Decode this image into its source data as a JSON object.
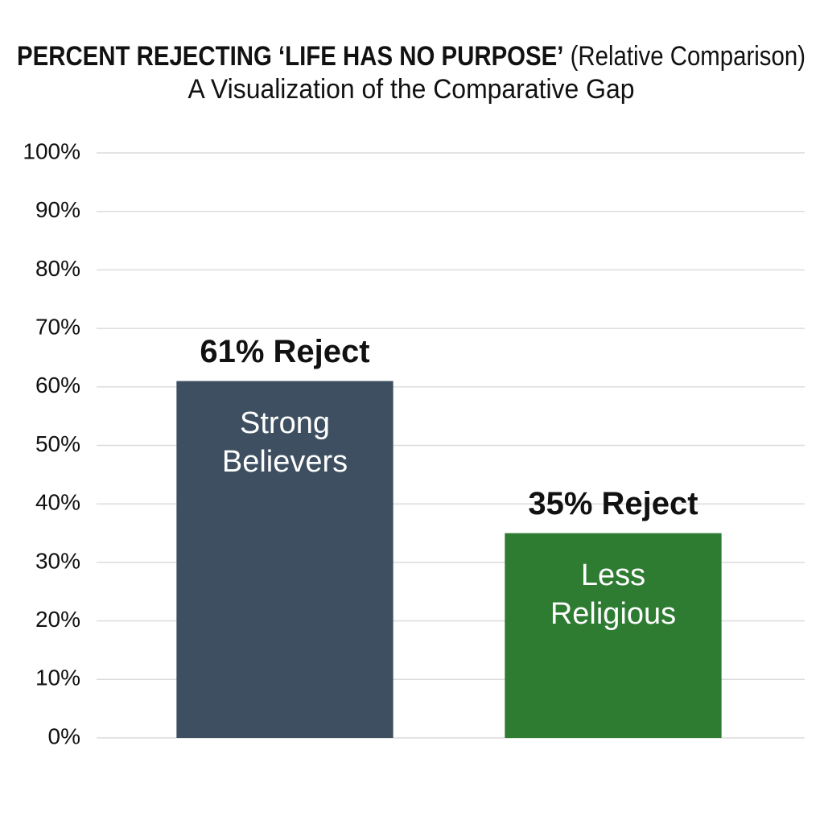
{
  "chart_data": {
    "type": "bar",
    "title": "PERCENT REJECTING ‘LIFE HAS NO PURPOSE’",
    "title_qualifier": "(Relative Comparison)",
    "subtitle": "A Visualization of the Comparative Gap",
    "categories": [
      "Strong Believers",
      "Less Religious"
    ],
    "values": [
      61,
      35
    ],
    "value_labels": [
      "61% Reject",
      "35% Reject"
    ],
    "colors": [
      "#3d4f60",
      "#2e7b32"
    ],
    "ylim": [
      0,
      100
    ],
    "yticks": [
      {
        "value": 0,
        "label": "0%"
      },
      {
        "value": 10,
        "label": "10%"
      },
      {
        "value": 20,
        "label": "20%"
      },
      {
        "value": 30,
        "label": "30%"
      },
      {
        "value": 40,
        "label": "40%"
      },
      {
        "value": 50,
        "label": "50%"
      },
      {
        "value": 60,
        "label": "60%"
      },
      {
        "value": 70,
        "label": "70%"
      },
      {
        "value": 80,
        "label": "80%"
      },
      {
        "value": 90,
        "label": "90%"
      },
      {
        "value": 100,
        "label": "100%"
      }
    ],
    "grid": true
  }
}
